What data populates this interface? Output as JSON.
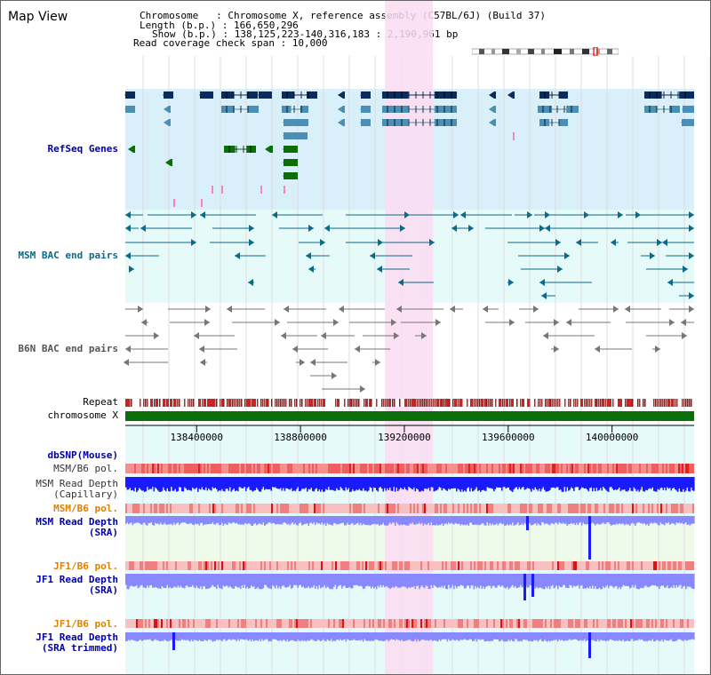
{
  "title": "Map View",
  "header": {
    "chromosome_line": "Chromosome   : Chromosome X, reference assembly (C57BL/6J) (Build 37)",
    "length_line": "Length (b.p.) : 166,650,296",
    "show_line": "Show (b.p.) : 138,125,223-140,316,183 : 2,190,961 bp",
    "coverage_line": "Read coverage check span : 10,000"
  },
  "tracks": {
    "refseq": "RefSeq Genes",
    "msm_bac": "MSM BAC end pairs",
    "b6n_bac": "B6N BAC end pairs",
    "repeat": "Repeat",
    "chromosome": "chromosome X",
    "dbsnp": "dbSNP(Mouse)",
    "msm_b6_pol_1": "MSM/B6 pol.",
    "msm_depth_cap_1": "MSM Read Depth",
    "msm_depth_cap_2": "(Capillary)",
    "msm_b6_pol_2": "MSM/B6 pol.",
    "msm_depth_sra_1": "MSM Read Depth",
    "msm_depth_sra_2": "(SRA)",
    "jf1_b6_pol_1": "JF1/B6 pol.",
    "jf1_depth_sra_1": "JF1 Read Depth",
    "jf1_depth_sra_2": "(SRA)",
    "jf1_b6_pol_2": "JF1/B6 pol.",
    "jf1_depth_trim_1": "JF1 Read Depth",
    "jf1_depth_trim_2": "(SRA trimmed)"
  },
  "axis": {
    "start_bp": 138125223,
    "end_bp": 140316183,
    "ticks": [
      138400000,
      138800000,
      139200000,
      139600000,
      140000000
    ],
    "tick_labels": [
      "138400000",
      "138800000",
      "139200000",
      "139600000",
      "140000000"
    ]
  },
  "highlight_region_bp": [
    139125000,
    139310000
  ],
  "colors": {
    "refseq_bg": "#d9f0fa",
    "bac_bg": "#e6fafa",
    "lower_bg": "#e6fafa",
    "highlight": "#fcdcf2",
    "gene_navy": "#0b2a5e",
    "gene_steel": "#4a8fb5",
    "gene_green": "#0a6e0a",
    "msm_bac": "#0b6b8a",
    "b6n_bac": "#777777",
    "repeat": "#cc2222",
    "chromosome": "#0a6e0a",
    "depth_blue": "#1a1aff",
    "depth_light": "#8888ff",
    "label_blue": "#0000aa",
    "label_orange": "#e08000",
    "label_gray": "#333333"
  }
}
